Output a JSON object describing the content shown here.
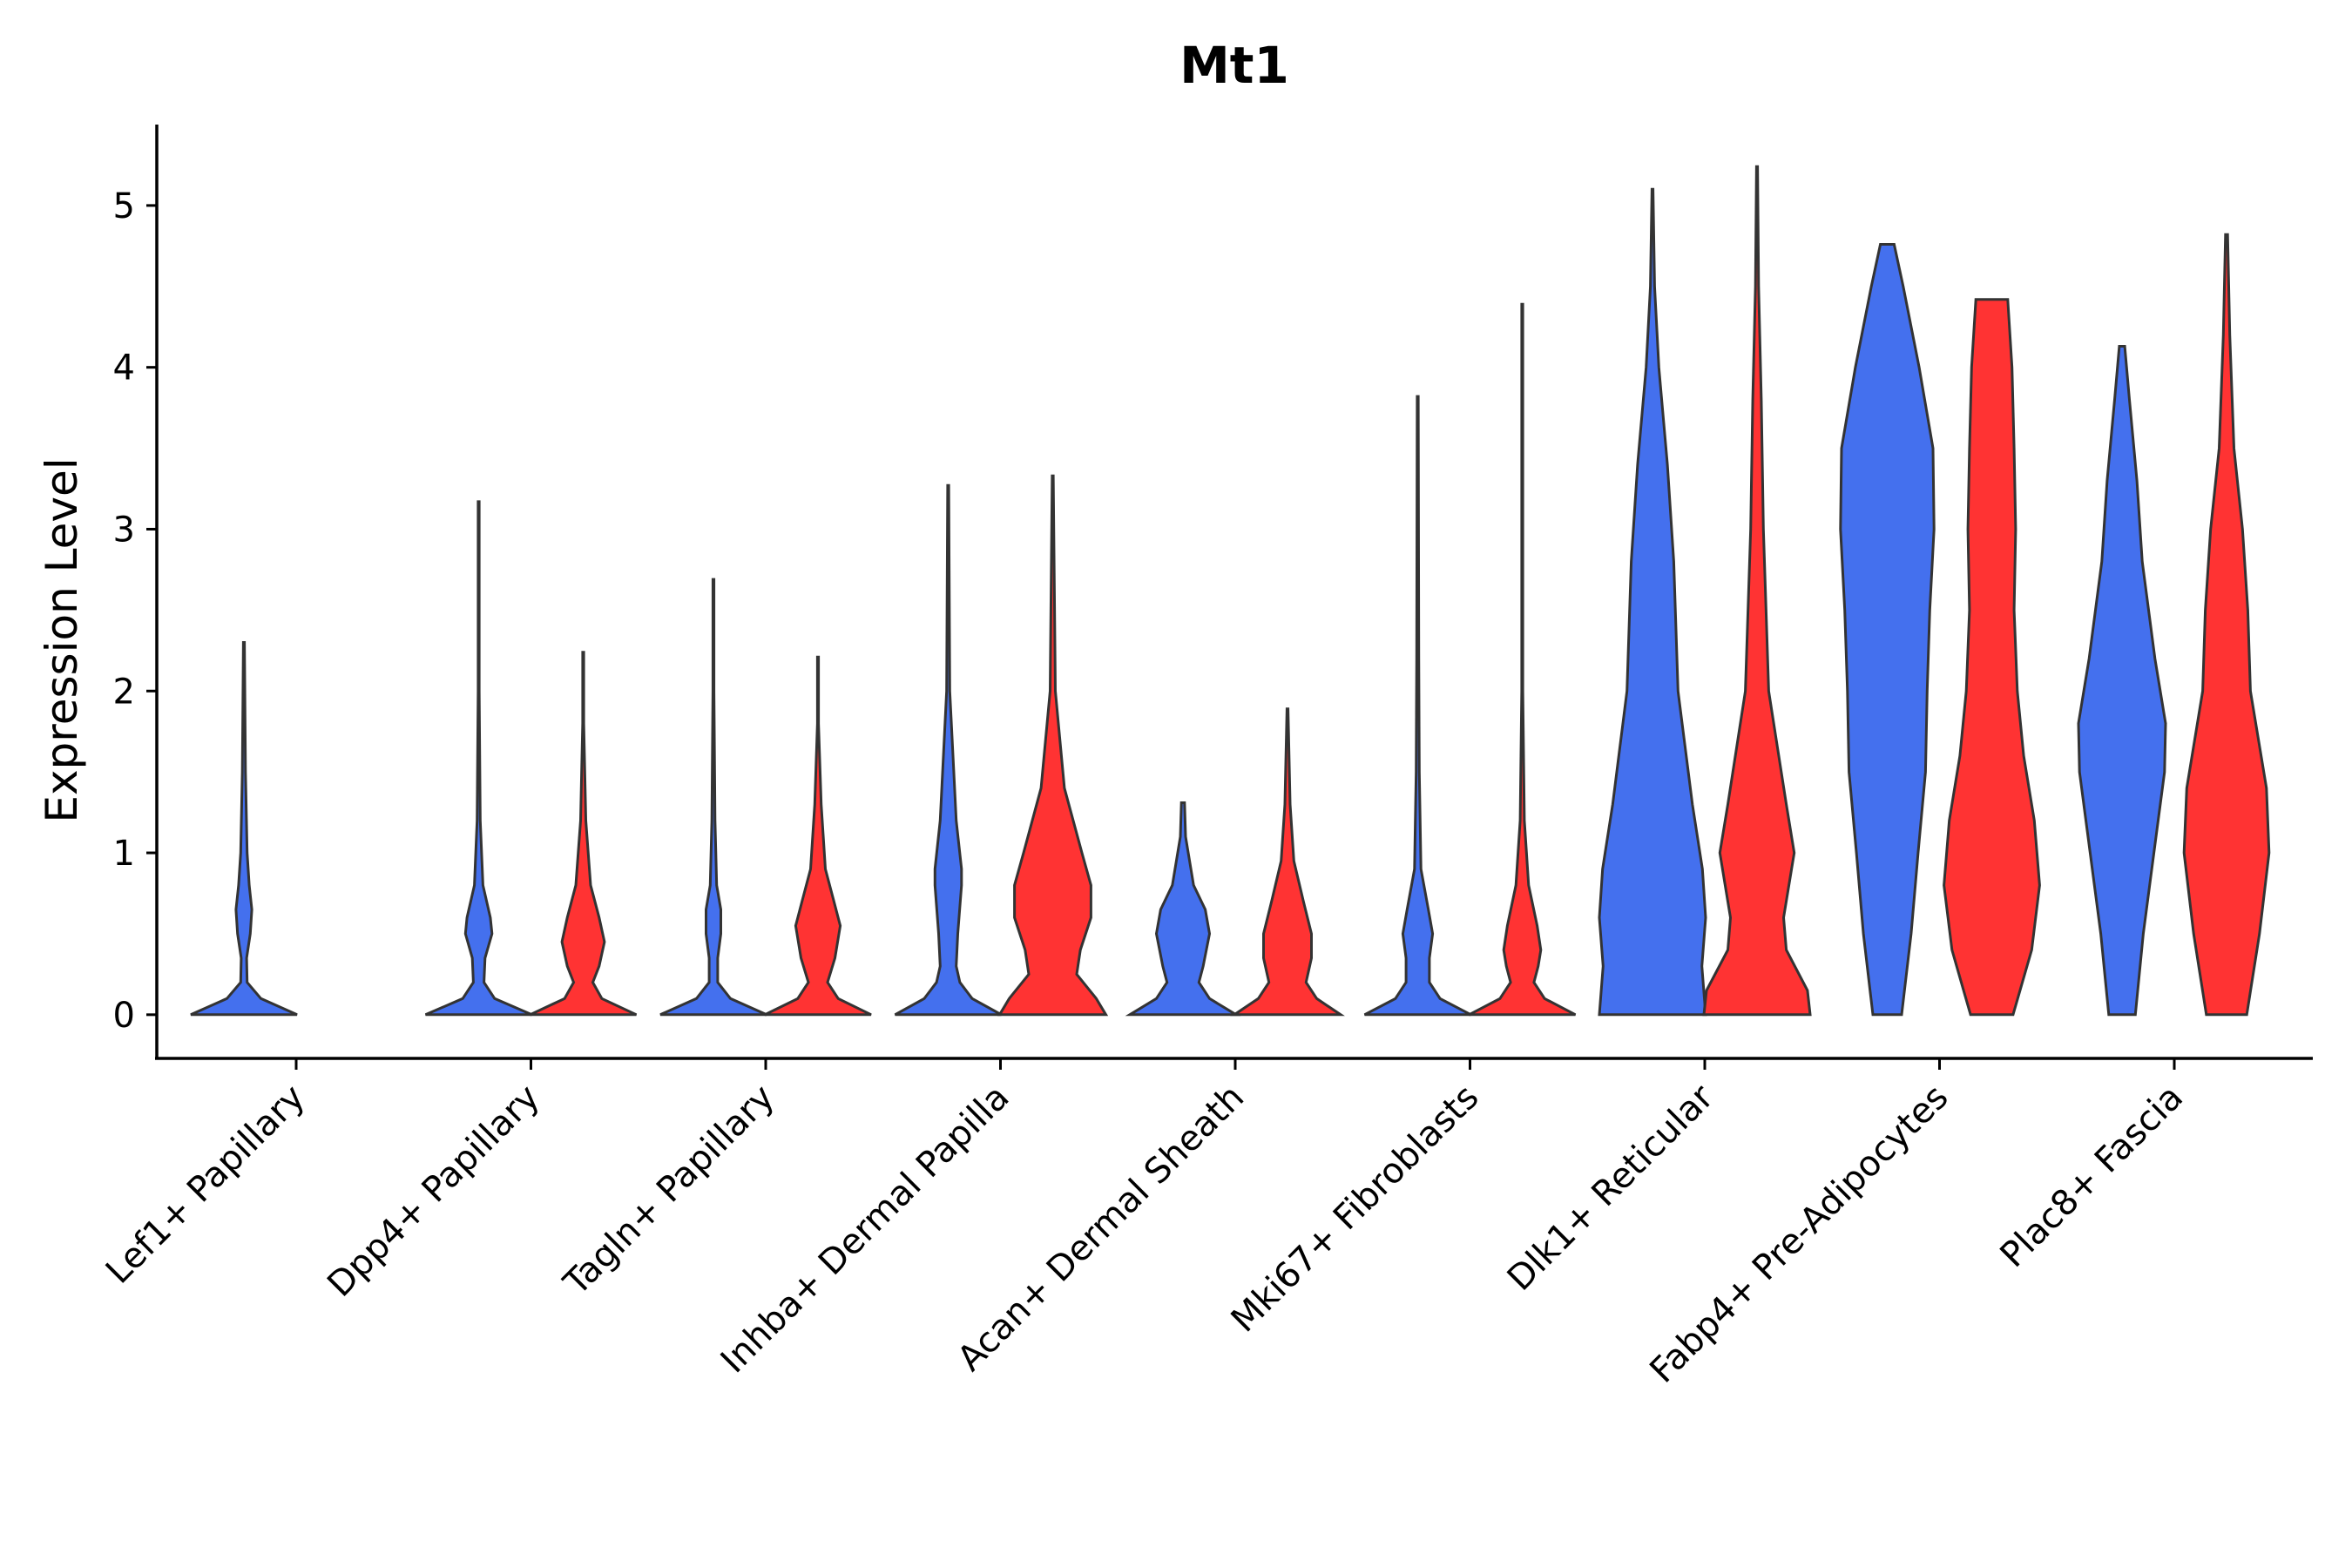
{
  "chart_data": {
    "type": "violin",
    "title": "Mt1",
    "xlabel": "",
    "ylabel": "Expression Level",
    "ylim": [
      -0.27,
      5.5
    ],
    "yticks": [
      0,
      1,
      2,
      3,
      4,
      5
    ],
    "series_colors": [
      "#4470EE",
      "#FF3333"
    ],
    "grid": false,
    "legend": "none",
    "categories": [
      "Lef1+ Papillary",
      "Dpp4+ Papillary",
      "Tagln+ Papillary",
      "Inhba+ Dermal Papilla",
      "Acan+ Dermal Sheath",
      "Mki67+ Fibroblasts",
      "Dlk1+ Reticular",
      "Fabp4+ Pre-Adipocytes",
      "Plac8+ Fascia"
    ],
    "violins": [
      {
        "category": "Lef1+ Papillary",
        "series": 0,
        "max": 2.3,
        "profile": [
          [
            0,
            1.0
          ],
          [
            0.1,
            0.32
          ],
          [
            0.2,
            0.06
          ],
          [
            0.35,
            0.05
          ],
          [
            0.5,
            0.12
          ],
          [
            0.65,
            0.15
          ],
          [
            0.8,
            0.1
          ],
          [
            1.0,
            0.06
          ],
          [
            1.5,
            0.03
          ],
          [
            2.3,
            0.01
          ]
        ]
      },
      {
        "category": "Dpp4+ Papillary",
        "series": 0,
        "max": 3.17,
        "profile": [
          [
            0,
            1.0
          ],
          [
            0.1,
            0.3
          ],
          [
            0.2,
            0.1
          ],
          [
            0.35,
            0.12
          ],
          [
            0.5,
            0.25
          ],
          [
            0.6,
            0.22
          ],
          [
            0.8,
            0.08
          ],
          [
            1.2,
            0.03
          ],
          [
            2.0,
            0.01
          ],
          [
            3.17,
            0.01
          ]
        ]
      },
      {
        "category": "Dpp4+ Papillary",
        "series": 1,
        "max": 2.24,
        "profile": [
          [
            0,
            1.0
          ],
          [
            0.1,
            0.35
          ],
          [
            0.2,
            0.18
          ],
          [
            0.3,
            0.3
          ],
          [
            0.45,
            0.4
          ],
          [
            0.6,
            0.3
          ],
          [
            0.8,
            0.14
          ],
          [
            1.2,
            0.05
          ],
          [
            1.8,
            0.01
          ],
          [
            2.24,
            0.01
          ]
        ]
      },
      {
        "category": "Tagln+ Papillary",
        "series": 0,
        "max": 2.69,
        "profile": [
          [
            0,
            1.0
          ],
          [
            0.1,
            0.32
          ],
          [
            0.2,
            0.08
          ],
          [
            0.35,
            0.08
          ],
          [
            0.5,
            0.14
          ],
          [
            0.65,
            0.14
          ],
          [
            0.8,
            0.06
          ],
          [
            1.2,
            0.03
          ],
          [
            2.0,
            0.01
          ],
          [
            2.69,
            0.01
          ]
        ]
      },
      {
        "category": "Tagln+ Papillary",
        "series": 1,
        "max": 2.21,
        "profile": [
          [
            0,
            1.0
          ],
          [
            0.1,
            0.38
          ],
          [
            0.2,
            0.18
          ],
          [
            0.35,
            0.32
          ],
          [
            0.55,
            0.42
          ],
          [
            0.7,
            0.3
          ],
          [
            0.9,
            0.14
          ],
          [
            1.3,
            0.06
          ],
          [
            1.8,
            0.01
          ],
          [
            2.21,
            0.01
          ]
        ]
      },
      {
        "category": "Inhba+ Dermal Papilla",
        "series": 0,
        "max": 3.27,
        "profile": [
          [
            0,
            1.0
          ],
          [
            0.1,
            0.45
          ],
          [
            0.2,
            0.22
          ],
          [
            0.3,
            0.15
          ],
          [
            0.5,
            0.18
          ],
          [
            0.8,
            0.25
          ],
          [
            0.9,
            0.25
          ],
          [
            1.2,
            0.15
          ],
          [
            2.0,
            0.03
          ],
          [
            3.27,
            0.01
          ]
        ]
      },
      {
        "category": "Inhba+ Dermal Papilla",
        "series": 1,
        "max": 3.33,
        "profile": [
          [
            0,
            1.0
          ],
          [
            0.1,
            0.82
          ],
          [
            0.25,
            0.45
          ],
          [
            0.4,
            0.52
          ],
          [
            0.6,
            0.72
          ],
          [
            0.8,
            0.72
          ],
          [
            1.0,
            0.55
          ],
          [
            1.4,
            0.22
          ],
          [
            2.0,
            0.05
          ],
          [
            3.33,
            0.01
          ]
        ]
      },
      {
        "category": "Acan+ Dermal Sheath",
        "series": 0,
        "max": 1.31,
        "profile": [
          [
            0,
            1.0
          ],
          [
            0.1,
            0.5
          ],
          [
            0.2,
            0.3
          ],
          [
            0.3,
            0.38
          ],
          [
            0.5,
            0.5
          ],
          [
            0.65,
            0.42
          ],
          [
            0.8,
            0.2
          ],
          [
            1.1,
            0.05
          ],
          [
            1.31,
            0.03
          ]
        ]
      },
      {
        "category": "Acan+ Dermal Sheath",
        "series": 1,
        "max": 1.89,
        "profile": [
          [
            0,
            1.0
          ],
          [
            0.1,
            0.55
          ],
          [
            0.2,
            0.35
          ],
          [
            0.35,
            0.45
          ],
          [
            0.5,
            0.45
          ],
          [
            0.7,
            0.3
          ],
          [
            0.95,
            0.12
          ],
          [
            1.3,
            0.05
          ],
          [
            1.89,
            0.01
          ]
        ]
      },
      {
        "category": "Mki67+ Fibroblasts",
        "series": 0,
        "max": 3.82,
        "profile": [
          [
            0,
            1.0
          ],
          [
            0.1,
            0.42
          ],
          [
            0.2,
            0.22
          ],
          [
            0.35,
            0.22
          ],
          [
            0.5,
            0.28
          ],
          [
            0.65,
            0.2
          ],
          [
            0.9,
            0.06
          ],
          [
            1.5,
            0.03
          ],
          [
            2.2,
            0.02
          ],
          [
            3.82,
            0.01
          ]
        ]
      },
      {
        "category": "Mki67+ Fibroblasts",
        "series": 1,
        "max": 4.39,
        "profile": [
          [
            0,
            1.0
          ],
          [
            0.1,
            0.42
          ],
          [
            0.2,
            0.22
          ],
          [
            0.3,
            0.3
          ],
          [
            0.4,
            0.35
          ],
          [
            0.55,
            0.28
          ],
          [
            0.8,
            0.12
          ],
          [
            1.2,
            0.04
          ],
          [
            2.0,
            0.01
          ],
          [
            4.39,
            0.01
          ]
        ]
      },
      {
        "category": "Dlk1+ Reticular",
        "series": 0,
        "max": 5.1,
        "profile": [
          [
            0,
            1.0
          ],
          [
            0.3,
            0.93
          ],
          [
            0.6,
            1.0
          ],
          [
            0.9,
            0.94
          ],
          [
            1.3,
            0.75
          ],
          [
            2.0,
            0.48
          ],
          [
            2.8,
            0.4
          ],
          [
            3.4,
            0.28
          ],
          [
            4.0,
            0.12
          ],
          [
            4.5,
            0.04
          ],
          [
            5.1,
            0.01
          ]
        ]
      },
      {
        "category": "Dlk1+ Reticular",
        "series": 1,
        "max": 5.24,
        "profile": [
          [
            0,
            1.0
          ],
          [
            0.15,
            0.95
          ],
          [
            0.4,
            0.55
          ],
          [
            0.6,
            0.5
          ],
          [
            1.0,
            0.7
          ],
          [
            1.3,
            0.55
          ],
          [
            2.0,
            0.22
          ],
          [
            3.0,
            0.12
          ],
          [
            3.8,
            0.08
          ],
          [
            4.5,
            0.03
          ],
          [
            5.24,
            0.01
          ]
        ]
      },
      {
        "category": "Fabp4+ Pre-Adipocytes",
        "series": 0,
        "max": 4.76,
        "profile": [
          [
            0,
            0.27
          ],
          [
            0.5,
            0.45
          ],
          [
            1.0,
            0.58
          ],
          [
            1.5,
            0.72
          ],
          [
            2.0,
            0.75
          ],
          [
            2.5,
            0.8
          ],
          [
            3.0,
            0.88
          ],
          [
            3.5,
            0.86
          ],
          [
            4.0,
            0.6
          ],
          [
            4.5,
            0.3
          ],
          [
            4.76,
            0.13
          ]
        ]
      },
      {
        "category": "Fabp4+ Pre-Adipocytes",
        "series": 1,
        "max": 4.42,
        "profile": [
          [
            0,
            0.4
          ],
          [
            0.4,
            0.75
          ],
          [
            0.8,
            0.9
          ],
          [
            1.2,
            0.8
          ],
          [
            1.6,
            0.6
          ],
          [
            2.0,
            0.48
          ],
          [
            2.5,
            0.42
          ],
          [
            3.0,
            0.45
          ],
          [
            3.5,
            0.42
          ],
          [
            4.0,
            0.38
          ],
          [
            4.42,
            0.3
          ]
        ]
      },
      {
        "category": "Plac8+ Fascia",
        "series": 0,
        "max": 4.13,
        "profile": [
          [
            0,
            0.25
          ],
          [
            0.5,
            0.4
          ],
          [
            1.0,
            0.6
          ],
          [
            1.5,
            0.8
          ],
          [
            1.8,
            0.82
          ],
          [
            2.2,
            0.62
          ],
          [
            2.8,
            0.38
          ],
          [
            3.3,
            0.28
          ],
          [
            3.8,
            0.14
          ],
          [
            4.13,
            0.05
          ]
        ]
      },
      {
        "category": "Plac8+ Fascia",
        "series": 1,
        "max": 4.82,
        "profile": [
          [
            0,
            0.38
          ],
          [
            0.5,
            0.62
          ],
          [
            1.0,
            0.8
          ],
          [
            1.4,
            0.75
          ],
          [
            2.0,
            0.45
          ],
          [
            2.5,
            0.4
          ],
          [
            3.0,
            0.3
          ],
          [
            3.5,
            0.14
          ],
          [
            4.2,
            0.06
          ],
          [
            4.82,
            0.02
          ]
        ]
      }
    ]
  }
}
